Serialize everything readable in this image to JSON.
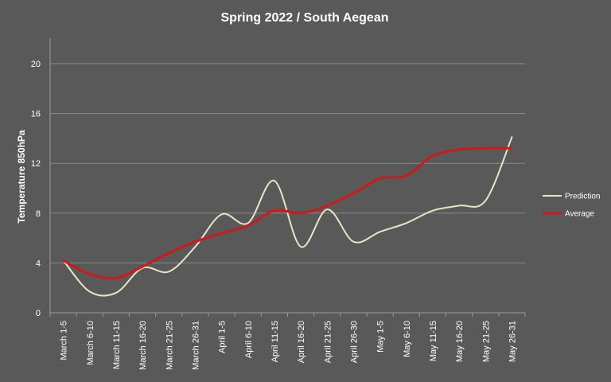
{
  "chart_data": {
    "type": "line",
    "title": "Spring 2022 / South Aegean",
    "ylabel": "Temperature 850hPa",
    "xlabel": "",
    "ylim": [
      0,
      20
    ],
    "yticks": [
      "0",
      "4",
      "8",
      "12",
      "16",
      "20"
    ],
    "categories": [
      "March 1-5",
      "March 6-10",
      "March 11-15",
      "March 16-20",
      "March 21-25",
      "March 26-31",
      "April 1-5",
      "April 6-10",
      "April 11-15",
      "April 16-20",
      "April 21-25",
      "April 26-30",
      "May 1-5",
      "May 6-10",
      "May 11-15",
      "May 16-20",
      "May 21-25",
      "May 26-31"
    ],
    "series": [
      {
        "name": "Prediction",
        "color": "#e8e4c6",
        "values": [
          4.2,
          1.7,
          1.6,
          3.6,
          3.3,
          5.3,
          7.9,
          7.2,
          10.6,
          5.3,
          8.3,
          5.7,
          6.5,
          7.2,
          8.2,
          8.6,
          9.0,
          14.1
        ]
      },
      {
        "name": "Average",
        "color": "#cc1a1a",
        "values": [
          4.2,
          3.1,
          2.8,
          3.7,
          4.8,
          5.7,
          6.4,
          7.0,
          8.2,
          8.0,
          8.6,
          9.6,
          10.8,
          11.0,
          12.6,
          13.1,
          13.2,
          13.2
        ]
      }
    ],
    "grid": true,
    "legend_position": "right"
  }
}
